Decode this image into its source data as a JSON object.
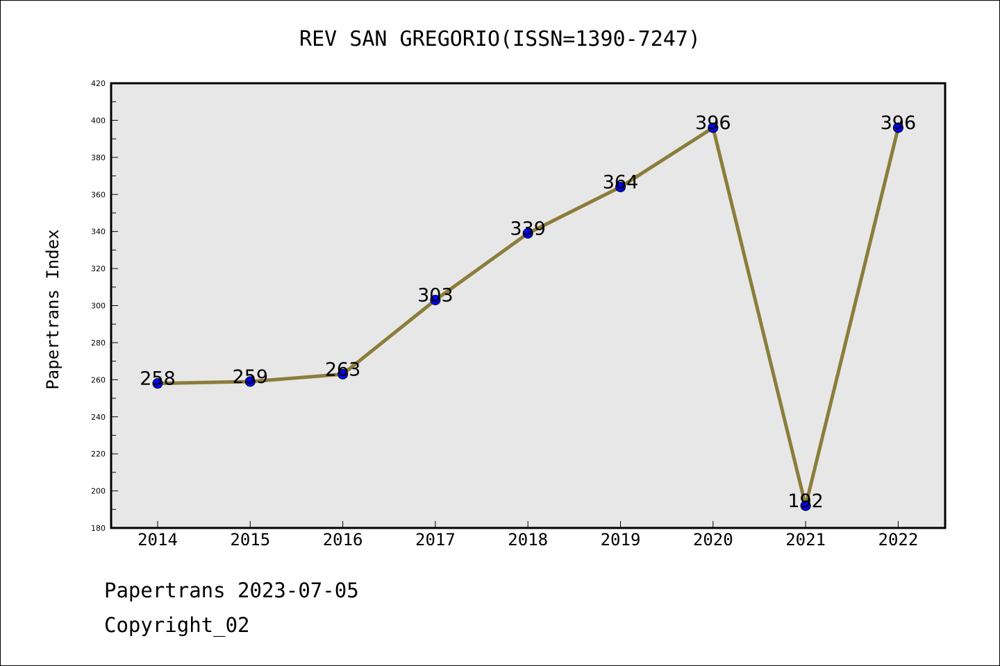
{
  "chart_data": {
    "type": "line",
    "title": "REV SAN GREGORIO(ISSN=1390-7247)",
    "xlabel": "",
    "ylabel": "Papertrans Index",
    "categories": [
      "2014",
      "2015",
      "2016",
      "2017",
      "2018",
      "2019",
      "2020",
      "2021",
      "2022"
    ],
    "values": [
      258,
      259,
      263,
      303,
      339,
      364,
      396,
      192,
      396
    ],
    "data_labels": [
      "258",
      "259",
      "263",
      "303",
      "339",
      "364",
      "396",
      "192",
      "396"
    ],
    "ylim": [
      180,
      420
    ],
    "yticks": [
      "180",
      "200",
      "220",
      "240",
      "260",
      "280",
      "300",
      "320",
      "340",
      "360",
      "380",
      "400",
      "420"
    ],
    "grid": false,
    "line_color": "#8b7d3a",
    "marker_color": "#0000ff",
    "plot_background": "#e7e7e7"
  },
  "footer": {
    "source": "Papertrans 2023-07-05",
    "copyright": "Copyright_02"
  }
}
